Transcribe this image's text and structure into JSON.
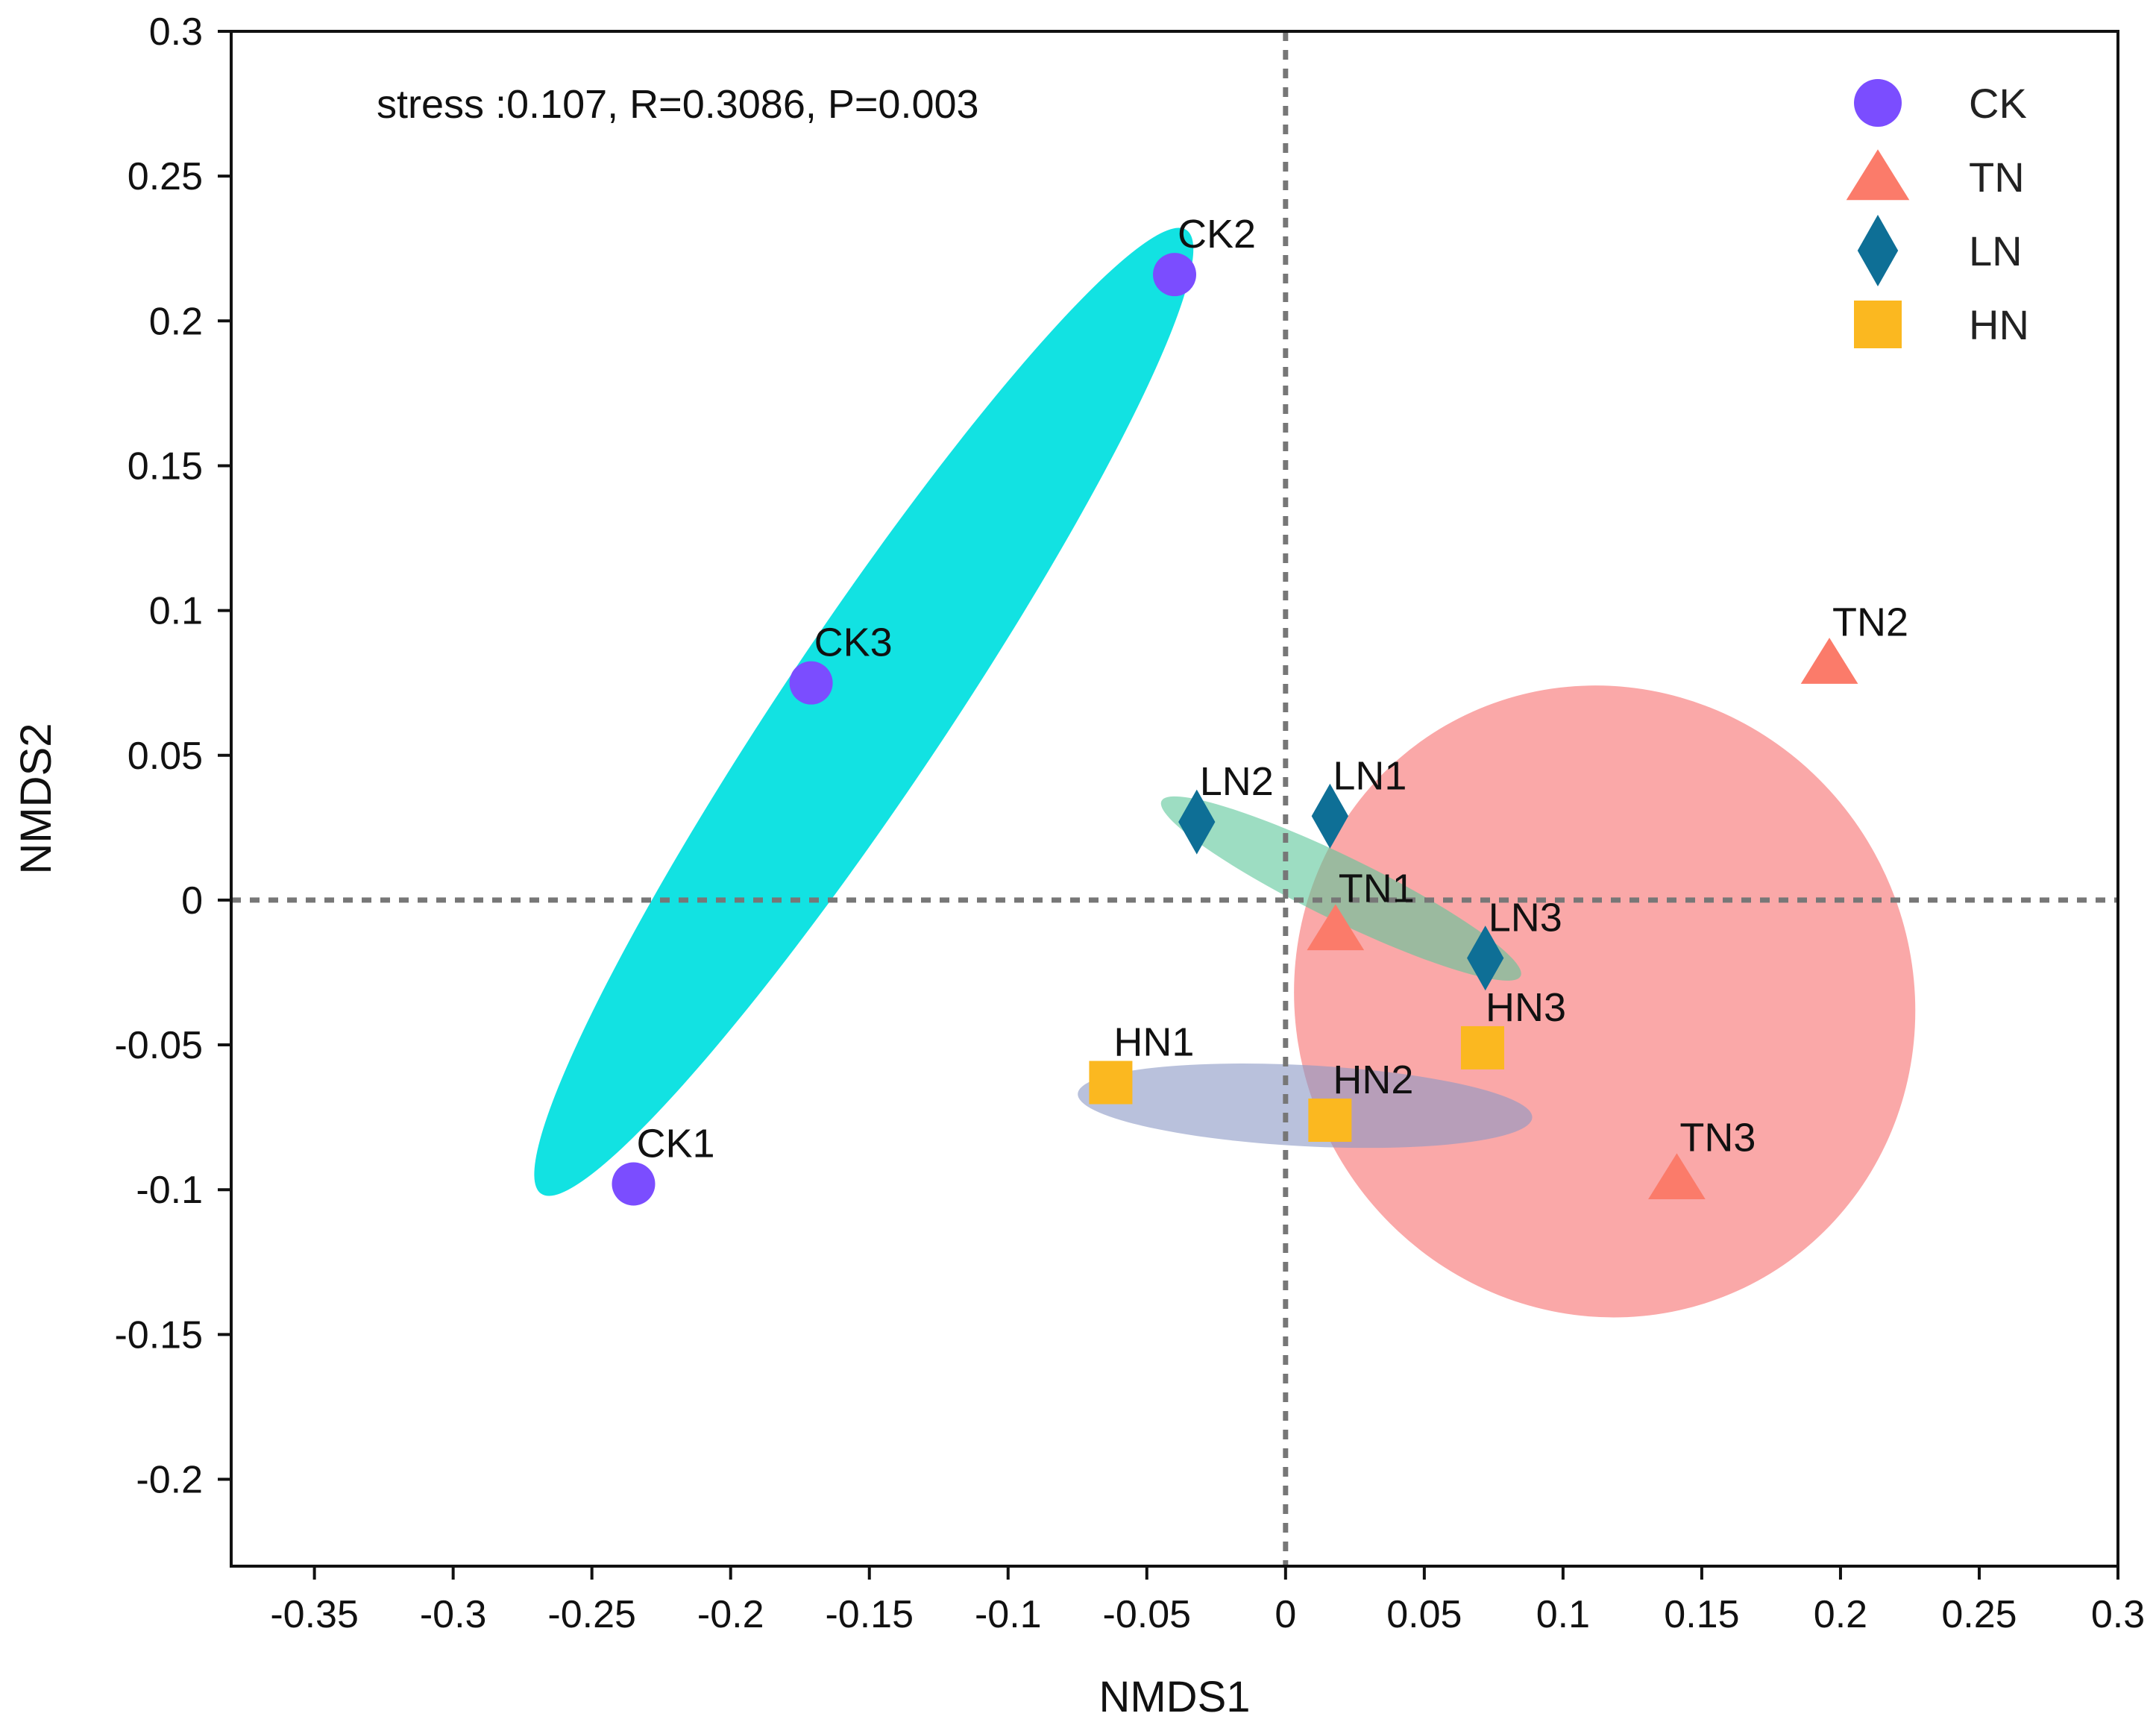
{
  "chart_data": {
    "type": "scatter",
    "xlabel": "NMDS1",
    "ylabel": "NMDS2",
    "xlim": [
      -0.38,
      0.3
    ],
    "ylim": [
      -0.23,
      0.3
    ],
    "xticks": [
      -0.35,
      -0.3,
      -0.25,
      -0.2,
      -0.15,
      -0.1,
      -0.05,
      0,
      0.05,
      0.1,
      0.15,
      0.2,
      0.25,
      0.3
    ],
    "xtick_labels": [
      "-0.35",
      "-0.3",
      "-0.25",
      "-0.2",
      "-0.15",
      "-0.1",
      "-0.05",
      "0",
      "0.05",
      "0.1",
      "0.15",
      "0.2",
      "0.25",
      "0.3"
    ],
    "yticks": [
      -0.2,
      -0.15,
      -0.1,
      -0.05,
      0,
      0.05,
      0.1,
      0.15,
      0.2,
      0.25,
      0.3
    ],
    "ytick_labels": [
      "-0.2",
      "-0.15",
      "-0.1",
      "-0.05",
      "0",
      "0.05",
      "0.1",
      "0.15",
      "0.2",
      "0.25",
      "0.3"
    ],
    "annotation": "stress :0.107, R=0.3086, P=0.003",
    "reference_lines": {
      "x": 0,
      "y": 0,
      "style": "dotted"
    },
    "legend_position": "top-right",
    "series": [
      {
        "name": "CK",
        "marker": "circle",
        "color": "#7b4dff",
        "ellipse_color": "#00e0e0",
        "ellipse_opacity": 0.93,
        "ellipse": {
          "cx": -0.152,
          "cy": 0.065,
          "rx": 0.209,
          "ry": 0.028,
          "angle_deg": 56.2
        },
        "points": [
          {
            "label": "CK1",
            "x": -0.235,
            "y": -0.098
          },
          {
            "label": "CK2",
            "x": -0.04,
            "y": 0.216
          },
          {
            "label": "CK3",
            "x": -0.171,
            "y": 0.075
          }
        ]
      },
      {
        "name": "TN",
        "marker": "triangle",
        "color": "#fb7b6a",
        "ellipse_color": "#f88b8b",
        "ellipse_opacity": 0.75,
        "ellipse": {
          "cx": 0.115,
          "cy": -0.035,
          "rx": 0.111,
          "ry": 0.11,
          "angle_deg": 30
        },
        "points": [
          {
            "label": "TN1",
            "x": 0.018,
            "y": -0.01
          },
          {
            "label": "TN2",
            "x": 0.196,
            "y": 0.082
          },
          {
            "label": "TN3",
            "x": 0.141,
            "y": -0.096
          }
        ]
      },
      {
        "name": "LN",
        "marker": "diamond",
        "color": "#0e6f96",
        "ellipse_color": "#5cc79a",
        "ellipse_opacity": 0.6,
        "ellipse": {
          "cx": 0.02,
          "cy": 0.004,
          "rx": 0.072,
          "ry": 0.011,
          "angle_deg": -26
        },
        "points": [
          {
            "label": "LN1",
            "x": 0.016,
            "y": 0.029
          },
          {
            "label": "LN2",
            "x": -0.032,
            "y": 0.027
          },
          {
            "label": "LN3",
            "x": 0.072,
            "y": -0.02
          }
        ]
      },
      {
        "name": "HN",
        "marker": "square",
        "color": "#fbb820",
        "ellipse_color": "#8a97c4",
        "ellipse_opacity": 0.6,
        "ellipse": {
          "cx": 0.007,
          "cy": -0.071,
          "rx": 0.082,
          "ry": 0.014,
          "angle_deg": -3
        },
        "points": [
          {
            "label": "HN1",
            "x": -0.063,
            "y": -0.063
          },
          {
            "label": "HN2",
            "x": 0.016,
            "y": -0.076
          },
          {
            "label": "HN3",
            "x": 0.071,
            "y": -0.051
          }
        ]
      }
    ]
  }
}
